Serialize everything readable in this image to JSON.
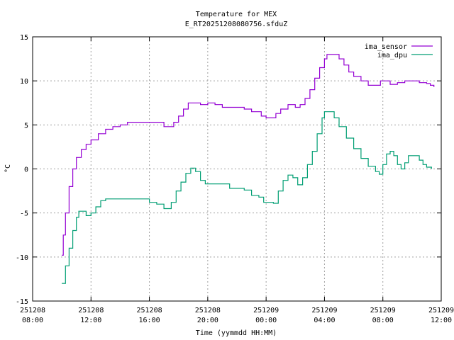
{
  "chart_data": {
    "type": "line",
    "title": "Temperature for MEX",
    "subtitle": "E_RT20251208080756.sfduZ",
    "xlabel": "Time (yymmdd HH:MM)",
    "ylabel": "°C",
    "xlim": [
      "2025-12-08 08:00",
      "2025-12-09 12:00"
    ],
    "ylim": [
      -15,
      15
    ],
    "grid": true,
    "legend_position": "top-right",
    "x_ticks": [
      {
        "value": "2025-12-08 08:00",
        "line1": "251208",
        "line2": "08:00"
      },
      {
        "value": "2025-12-08 12:00",
        "line1": "251208",
        "line2": "12:00"
      },
      {
        "value": "2025-12-08 16:00",
        "line1": "251208",
        "line2": "16:00"
      },
      {
        "value": "2025-12-08 20:00",
        "line1": "251208",
        "line2": "20:00"
      },
      {
        "value": "2025-12-09 00:00",
        "line1": "251209",
        "line2": "00:00"
      },
      {
        "value": "2025-12-09 04:00",
        "line1": "251209",
        "line2": "04:00"
      },
      {
        "value": "2025-12-09 08:00",
        "line1": "251209",
        "line2": "08:00"
      },
      {
        "value": "2025-12-09 12:00",
        "line1": "251209",
        "line2": "12:00"
      }
    ],
    "y_ticks": [
      "15",
      "10",
      "5",
      "0",
      "-5",
      "-10",
      "-15"
    ],
    "series": [
      {
        "name": "ima_sensor",
        "color": "#9400d3",
        "points": [
          [
            "2025-12-08 10:00",
            -9.8
          ],
          [
            "2025-12-08 10:06",
            -7.5
          ],
          [
            "2025-12-08 10:15",
            -5.0
          ],
          [
            "2025-12-08 10:30",
            -2.0
          ],
          [
            "2025-12-08 10:45",
            0.0
          ],
          [
            "2025-12-08 11:00",
            1.3
          ],
          [
            "2025-12-08 11:20",
            2.2
          ],
          [
            "2025-12-08 11:40",
            2.8
          ],
          [
            "2025-12-08 12:00",
            3.3
          ],
          [
            "2025-12-08 12:30",
            4.0
          ],
          [
            "2025-12-08 13:00",
            4.5
          ],
          [
            "2025-12-08 13:30",
            4.8
          ],
          [
            "2025-12-08 14:00",
            5.0
          ],
          [
            "2025-12-08 14:30",
            5.3
          ],
          [
            "2025-12-08 15:30",
            5.3
          ],
          [
            "2025-12-08 16:50",
            5.3
          ],
          [
            "2025-12-08 17:00",
            4.8
          ],
          [
            "2025-12-08 17:20",
            4.8
          ],
          [
            "2025-12-08 17:40",
            5.3
          ],
          [
            "2025-12-08 18:00",
            6.0
          ],
          [
            "2025-12-08 18:20",
            6.8
          ],
          [
            "2025-12-08 18:40",
            7.5
          ],
          [
            "2025-12-08 19:00",
            7.5
          ],
          [
            "2025-12-08 19:30",
            7.3
          ],
          [
            "2025-12-08 20:00",
            7.5
          ],
          [
            "2025-12-08 20:30",
            7.3
          ],
          [
            "2025-12-08 21:00",
            7.0
          ],
          [
            "2025-12-08 22:00",
            7.0
          ],
          [
            "2025-12-08 22:30",
            6.8
          ],
          [
            "2025-12-08 23:00",
            6.5
          ],
          [
            "2025-12-08 23:40",
            6.0
          ],
          [
            "2025-12-09 00:00",
            5.8
          ],
          [
            "2025-12-09 00:20",
            5.8
          ],
          [
            "2025-12-09 00:40",
            6.3
          ],
          [
            "2025-12-09 01:00",
            6.8
          ],
          [
            "2025-12-09 01:30",
            7.3
          ],
          [
            "2025-12-09 02:00",
            7.0
          ],
          [
            "2025-12-09 02:20",
            7.3
          ],
          [
            "2025-12-09 02:40",
            8.0
          ],
          [
            "2025-12-09 03:00",
            9.0
          ],
          [
            "2025-12-09 03:20",
            10.3
          ],
          [
            "2025-12-09 03:40",
            11.5
          ],
          [
            "2025-12-09 04:00",
            12.5
          ],
          [
            "2025-12-09 04:10",
            13.0
          ],
          [
            "2025-12-09 04:40",
            13.0
          ],
          [
            "2025-12-09 05:00",
            12.5
          ],
          [
            "2025-12-09 05:20",
            11.8
          ],
          [
            "2025-12-09 05:40",
            11.0
          ],
          [
            "2025-12-09 06:00",
            10.5
          ],
          [
            "2025-12-09 06:30",
            10.0
          ],
          [
            "2025-12-09 07:00",
            9.5
          ],
          [
            "2025-12-09 07:30",
            9.5
          ],
          [
            "2025-12-09 07:50",
            10.0
          ],
          [
            "2025-12-09 08:10",
            10.0
          ],
          [
            "2025-12-09 08:30",
            9.6
          ],
          [
            "2025-12-09 09:00",
            9.8
          ],
          [
            "2025-12-09 09:30",
            10.0
          ],
          [
            "2025-12-09 10:00",
            10.0
          ],
          [
            "2025-12-09 10:30",
            9.8
          ],
          [
            "2025-12-09 11:00",
            9.7
          ],
          [
            "2025-12-09 11:15",
            9.5
          ],
          [
            "2025-12-09 11:30",
            9.3
          ]
        ]
      },
      {
        "name": "ima_dpu",
        "color": "#009e73",
        "points": [
          [
            "2025-12-08 10:00",
            -13.0
          ],
          [
            "2025-12-08 10:15",
            -11.0
          ],
          [
            "2025-12-08 10:30",
            -9.0
          ],
          [
            "2025-12-08 10:45",
            -7.0
          ],
          [
            "2025-12-08 11:00",
            -5.5
          ],
          [
            "2025-12-08 11:10",
            -4.8
          ],
          [
            "2025-12-08 11:30",
            -4.8
          ],
          [
            "2025-12-08 11:40",
            -5.3
          ],
          [
            "2025-12-08 12:00",
            -5.0
          ],
          [
            "2025-12-08 12:20",
            -4.3
          ],
          [
            "2025-12-08 12:40",
            -3.6
          ],
          [
            "2025-12-08 13:00",
            -3.4
          ],
          [
            "2025-12-08 13:30",
            -3.4
          ],
          [
            "2025-12-08 14:00",
            -3.4
          ],
          [
            "2025-12-08 15:30",
            -3.4
          ],
          [
            "2025-12-08 16:00",
            -3.8
          ],
          [
            "2025-12-08 16:30",
            -4.0
          ],
          [
            "2025-12-08 17:00",
            -4.5
          ],
          [
            "2025-12-08 17:30",
            -3.8
          ],
          [
            "2025-12-08 17:50",
            -2.5
          ],
          [
            "2025-12-08 18:10",
            -1.5
          ],
          [
            "2025-12-08 18:30",
            -0.5
          ],
          [
            "2025-12-08 18:50",
            0.1
          ],
          [
            "2025-12-08 19:10",
            -0.3
          ],
          [
            "2025-12-08 19:30",
            -1.3
          ],
          [
            "2025-12-08 19:50",
            -1.7
          ],
          [
            "2025-12-08 20:30",
            -1.7
          ],
          [
            "2025-12-08 21:00",
            -1.7
          ],
          [
            "2025-12-08 21:30",
            -2.2
          ],
          [
            "2025-12-08 22:30",
            -2.4
          ],
          [
            "2025-12-08 23:00",
            -3.0
          ],
          [
            "2025-12-08 23:30",
            -3.2
          ],
          [
            "2025-12-08 23:50",
            -3.8
          ],
          [
            "2025-12-09 00:30",
            -3.9
          ],
          [
            "2025-12-09 00:50",
            -2.5
          ],
          [
            "2025-12-09 01:10",
            -1.3
          ],
          [
            "2025-12-09 01:30",
            -0.7
          ],
          [
            "2025-12-09 01:50",
            -1.0
          ],
          [
            "2025-12-09 02:10",
            -1.8
          ],
          [
            "2025-12-09 02:30",
            -1.0
          ],
          [
            "2025-12-09 02:50",
            0.5
          ],
          [
            "2025-12-09 03:10",
            2.0
          ],
          [
            "2025-12-09 03:30",
            4.0
          ],
          [
            "2025-12-09 03:50",
            5.8
          ],
          [
            "2025-12-09 04:00",
            6.5
          ],
          [
            "2025-12-09 04:20",
            6.5
          ],
          [
            "2025-12-09 04:40",
            5.8
          ],
          [
            "2025-12-09 05:00",
            4.8
          ],
          [
            "2025-12-09 05:30",
            3.5
          ],
          [
            "2025-12-09 06:00",
            2.3
          ],
          [
            "2025-12-09 06:30",
            1.2
          ],
          [
            "2025-12-09 07:00",
            0.3
          ],
          [
            "2025-12-09 07:30",
            -0.3
          ],
          [
            "2025-12-09 07:45",
            -0.6
          ],
          [
            "2025-12-09 08:00",
            0.5
          ],
          [
            "2025-12-09 08:15",
            1.7
          ],
          [
            "2025-12-09 08:30",
            2.0
          ],
          [
            "2025-12-09 08:45",
            1.5
          ],
          [
            "2025-12-09 09:00",
            0.5
          ],
          [
            "2025-12-09 09:15",
            0.0
          ],
          [
            "2025-12-09 09:30",
            0.7
          ],
          [
            "2025-12-09 09:45",
            1.5
          ],
          [
            "2025-12-09 10:15",
            1.5
          ],
          [
            "2025-12-09 10:30",
            1.0
          ],
          [
            "2025-12-09 10:45",
            0.5
          ],
          [
            "2025-12-09 11:00",
            0.2
          ],
          [
            "2025-12-09 11:20",
            0.0
          ]
        ]
      }
    ]
  }
}
